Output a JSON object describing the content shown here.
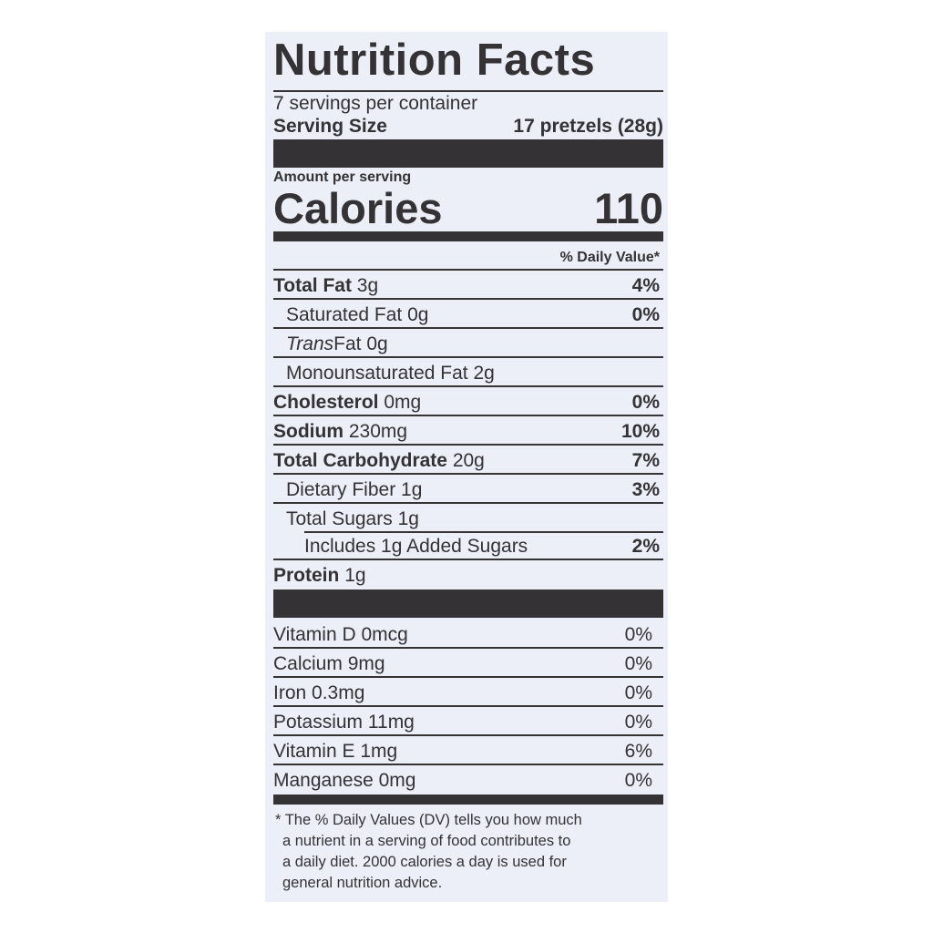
{
  "label": {
    "title": "Nutrition Facts",
    "servings_per_container": "7 servings per container",
    "serving_size_label": "Serving Size",
    "serving_size_value": "17 pretzels (28g)",
    "amount_per_serving": "Amount per serving",
    "calories_label": "Calories",
    "calories_value": "110",
    "daily_value_header": "% Daily Value*",
    "nutrients": [
      {
        "name": "Total Fat",
        "amount": "3g",
        "dv": "4%",
        "bold": true,
        "indent": 0
      },
      {
        "name": "Saturated Fat",
        "amount": "0g",
        "dv": "0%",
        "bold": false,
        "indent": 1
      },
      {
        "name": "Trans",
        "name_suffix": "Fat",
        "amount": "0g",
        "dv": "",
        "bold": false,
        "indent": 1
      },
      {
        "name": "Monounsaturated Fat",
        "amount": "2g",
        "dv": "",
        "bold": false,
        "indent": 1
      },
      {
        "name": "Cholesterol",
        "amount": "0mg",
        "dv": "0%",
        "bold": true,
        "indent": 0
      },
      {
        "name": "Sodium",
        "amount": "230mg",
        "dv": "10%",
        "bold": true,
        "indent": 0
      },
      {
        "name": "Total Carbohydrate",
        "amount": "20g",
        "dv": "7%",
        "bold": true,
        "indent": 0
      },
      {
        "name": "Dietary Fiber",
        "amount": "1g",
        "dv": "3%",
        "bold": false,
        "indent": 1
      },
      {
        "name": "Total Sugars",
        "amount": "1g",
        "dv": "",
        "bold": false,
        "indent": 1
      },
      {
        "name": "Includes 1g Added Sugars",
        "amount": "",
        "dv": "2%",
        "bold": false,
        "indent": 2
      },
      {
        "name": "Protein",
        "amount": "1g",
        "dv": "",
        "bold": true,
        "indent": 0
      }
    ],
    "vitamins": [
      {
        "name": "Vitamin D",
        "amount": "0mcg",
        "dv": "0%"
      },
      {
        "name": "Calcium",
        "amount": "9mg",
        "dv": "0%"
      },
      {
        "name": "Iron",
        "amount": "0.3mg",
        "dv": "0%"
      },
      {
        "name": "Potassium",
        "amount": "11mg",
        "dv": "0%"
      },
      {
        "name": "Vitamin E",
        "amount": "1mg",
        "dv": "6%"
      },
      {
        "name": "Manganese",
        "amount": "0mg",
        "dv": "0%"
      }
    ],
    "footnote": [
      "* The % Daily Values (DV) tells you how much",
      "a nutrient in a serving of food contributes to",
      "a daily diet. 2000 calories a day is used for",
      "general nutrition advice."
    ],
    "colors": {
      "ink": "#343234",
      "background": "#eceef8"
    }
  }
}
